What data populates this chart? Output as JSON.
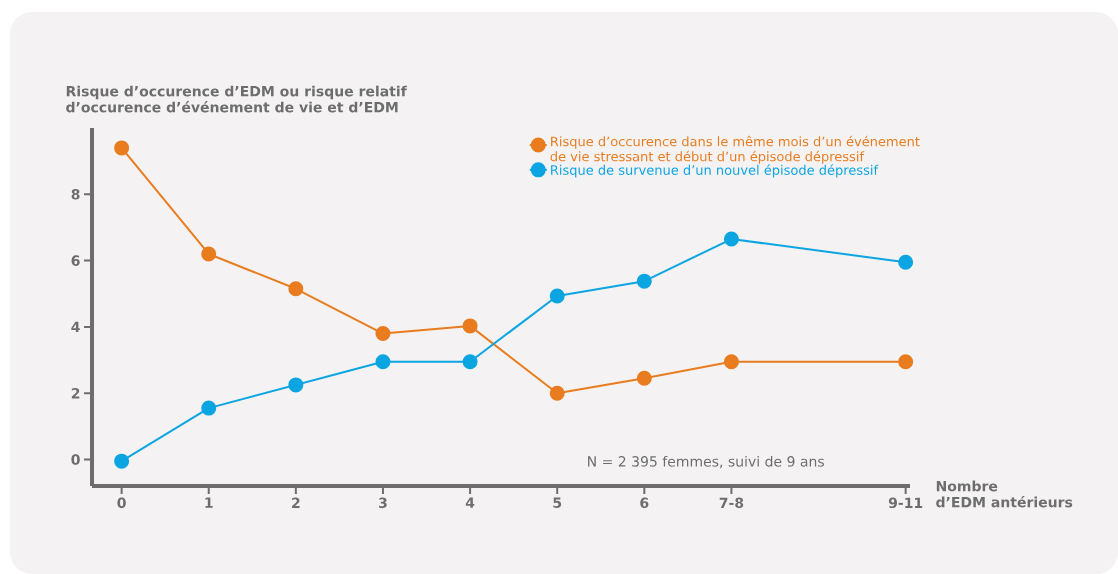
{
  "chart_data": {
    "type": "line",
    "ylabel": "Risque d’occurence d’EDM ou risque relatif\nd’occurence d’événement de vie et d’EDM",
    "xlabel": "Nombre\nd’EDM antérieurs",
    "annotations": [
      "N = 2 395 femmes, suivi de 9 ans"
    ],
    "x": [
      0,
      1,
      2,
      3,
      4,
      5,
      6,
      7,
      9
    ],
    "xlim": [
      -0.34,
      9.05
    ],
    "xticks": [
      0,
      1,
      2,
      3,
      4,
      5,
      6,
      {
        "value": 7,
        "label": "7-8"
      },
      {
        "value": 9,
        "label": "9-11"
      }
    ],
    "ylim": [
      -0.8,
      10
    ],
    "yticks": [
      0,
      2,
      4,
      6,
      8
    ],
    "legend": "top right",
    "marker": "circle",
    "series": [
      {
        "name": "Risque d’occurence dans le même mois d’un événement\nde vie stressant et début d’un épisode dépressif",
        "color": "#e87c1e",
        "values": [
          9.4,
          6.2,
          5.15,
          3.8,
          4.03,
          2.0,
          2.45,
          2.95,
          2.95
        ]
      },
      {
        "name": "Risque de survenue d’un nouvel épisode dépressif",
        "color": "#0ba5e2",
        "values": [
          -0.05,
          1.55,
          2.25,
          2.95,
          2.95,
          4.93,
          5.38,
          6.65,
          5.95
        ]
      }
    ]
  }
}
